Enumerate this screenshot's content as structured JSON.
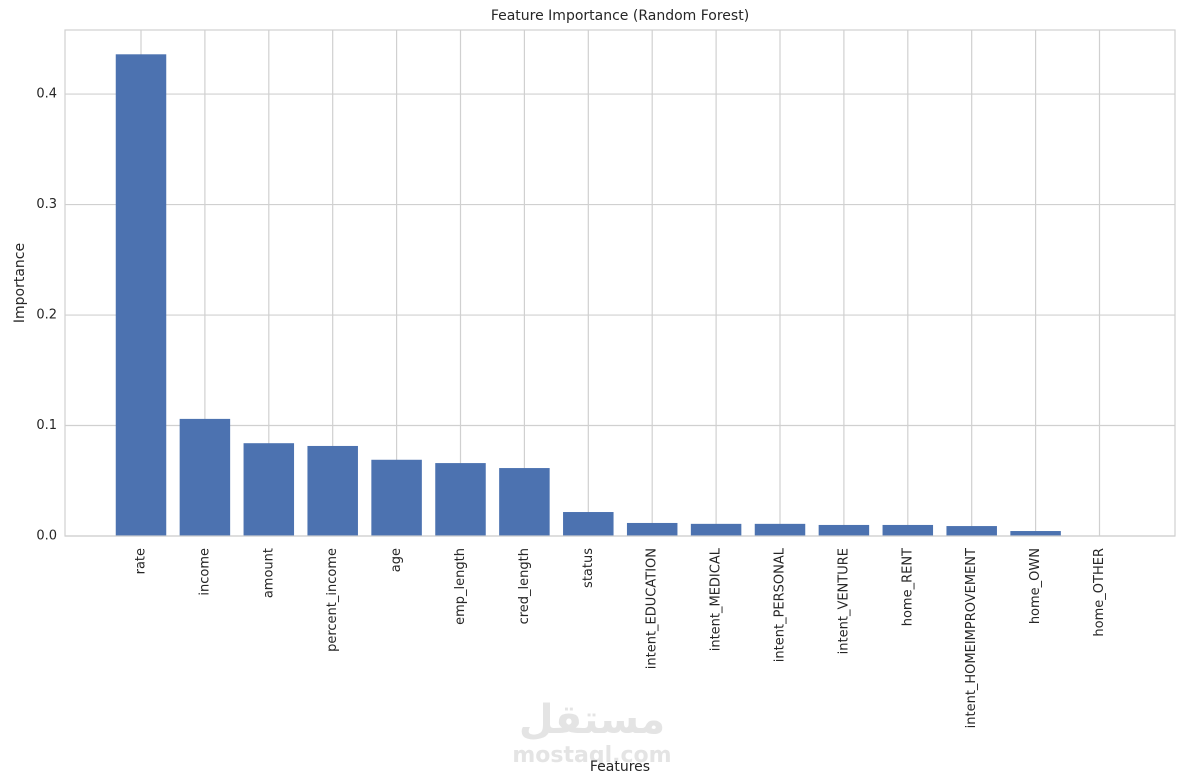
{
  "chart_data": {
    "type": "bar",
    "title": "Feature Importance (Random Forest)",
    "x_label": "Features",
    "y_label": "Importance",
    "categories": [
      "rate",
      "income",
      "amount",
      "percent_income",
      "age",
      "emp_length",
      "cred_length",
      "status",
      "intent_EDUCATION",
      "intent_MEDICAL",
      "intent_PERSONAL",
      "intent_VENTURE",
      "home_RENT",
      "intent_HOMEIMPROVEMENT",
      "home_OWN",
      "home_OTHER"
    ],
    "values": [
      0.436,
      0.106,
      0.084,
      0.0815,
      0.069,
      0.066,
      0.0615,
      0.0217,
      0.0118,
      0.011,
      0.011,
      0.01,
      0.01,
      0.009,
      0.0045,
      0.0003
    ],
    "color": "#4c72b0",
    "ylim": [
      0,
      0.458
    ],
    "yticks": [
      {
        "value": 0,
        "label": "0.0"
      },
      0.1,
      0.2,
      0.3,
      0.4
    ],
    "grid": true,
    "watermark": {
      "arabic": "مستقل",
      "latin": "mostaql.com"
    }
  }
}
